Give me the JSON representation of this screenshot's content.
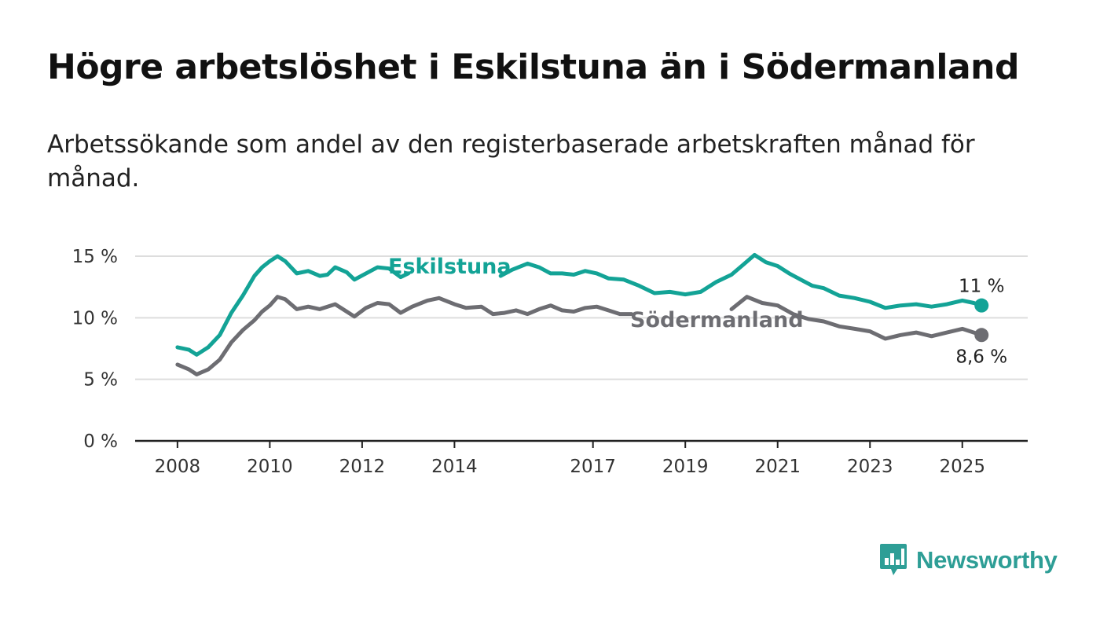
{
  "title": "Högre arbetslöshet i Eskilstuna än i Södermanland",
  "subtitle": "Arbetssökande som andel av den registerbaserade arbetskraften månad för månad.",
  "brand": {
    "name": "Newsworthy",
    "color": "#2e9e96",
    "icon": "bar-chart-speech-bubble-icon"
  },
  "colors": {
    "eskilstuna": "#13a396",
    "sodermanland": "#6d6d72",
    "grid": "#dddddd",
    "axis": "#222222"
  },
  "chart_data": {
    "type": "line",
    "ylim": [
      0,
      15
    ],
    "yticks": [
      0,
      5,
      10,
      15
    ],
    "ytick_labels": [
      "0 %",
      "5 %",
      "10 %",
      "15 %"
    ],
    "xlim": [
      "2007-02",
      "2026-06"
    ],
    "xticks": [
      "2008-01",
      "2010-01",
      "2012-01",
      "2014-01",
      "2017-01",
      "2019-01",
      "2021-01",
      "2023-01",
      "2025-01"
    ],
    "xtick_labels": [
      "2008",
      "2010",
      "2012",
      "2014",
      "2017",
      "2019",
      "2021",
      "2023",
      "2025"
    ],
    "grid": true,
    "series": [
      {
        "name": "Eskilstuna",
        "key": "eskilstuna",
        "end_label": "11 %",
        "points": [
          [
            "2008-01",
            7.6
          ],
          [
            "2008-04",
            7.4
          ],
          [
            "2008-06",
            7.0
          ],
          [
            "2008-09",
            7.6
          ],
          [
            "2008-12",
            8.6
          ],
          [
            "2009-03",
            10.4
          ],
          [
            "2009-06",
            11.8
          ],
          [
            "2009-09",
            13.4
          ],
          [
            "2009-11",
            14.1
          ],
          [
            "2010-01",
            14.6
          ],
          [
            "2010-03",
            15.0
          ],
          [
            "2010-05",
            14.6
          ],
          [
            "2010-08",
            13.6
          ],
          [
            "2010-11",
            13.8
          ],
          [
            "2011-02",
            13.4
          ],
          [
            "2011-04",
            13.5
          ],
          [
            "2011-06",
            14.1
          ],
          [
            "2011-09",
            13.7
          ],
          [
            "2011-11",
            13.1
          ],
          [
            "2012-02",
            13.6
          ],
          [
            "2012-05",
            14.1
          ],
          [
            "2012-08",
            14.0
          ],
          [
            "2012-11",
            13.3
          ],
          [
            "2013-01",
            13.6
          ],
          [
            "2015-01",
            13.4
          ],
          [
            "2015-04",
            13.9
          ],
          [
            "2015-08",
            14.4
          ],
          [
            "2015-11",
            14.1
          ],
          [
            "2016-02",
            13.6
          ],
          [
            "2016-05",
            13.6
          ],
          [
            "2016-08",
            13.5
          ],
          [
            "2016-11",
            13.8
          ],
          [
            "2017-02",
            13.6
          ],
          [
            "2017-05",
            13.2
          ],
          [
            "2017-09",
            13.1
          ],
          [
            "2018-01",
            12.6
          ],
          [
            "2018-05",
            12.0
          ],
          [
            "2018-09",
            12.1
          ],
          [
            "2019-01",
            11.9
          ],
          [
            "2019-05",
            12.1
          ],
          [
            "2019-09",
            12.9
          ],
          [
            "2020-01",
            13.5
          ],
          [
            "2020-04",
            14.3
          ],
          [
            "2020-07",
            15.1
          ],
          [
            "2020-10",
            14.5
          ],
          [
            "2021-01",
            14.2
          ],
          [
            "2021-04",
            13.6
          ],
          [
            "2021-07",
            13.1
          ],
          [
            "2021-10",
            12.6
          ],
          [
            "2022-01",
            12.4
          ],
          [
            "2022-05",
            11.8
          ],
          [
            "2022-09",
            11.6
          ],
          [
            "2023-01",
            11.3
          ],
          [
            "2023-05",
            10.8
          ],
          [
            "2023-09",
            11.0
          ],
          [
            "2024-01",
            11.1
          ],
          [
            "2024-05",
            10.9
          ],
          [
            "2024-09",
            11.1
          ],
          [
            "2025-01",
            11.4
          ],
          [
            "2025-04",
            11.2
          ],
          [
            "2025-06",
            11.0
          ]
        ]
      },
      {
        "name": "Södermanland",
        "key": "sodermanland",
        "end_label": "8,6 %",
        "points": [
          [
            "2008-01",
            6.2
          ],
          [
            "2008-04",
            5.8
          ],
          [
            "2008-06",
            5.4
          ],
          [
            "2008-09",
            5.8
          ],
          [
            "2008-12",
            6.6
          ],
          [
            "2009-03",
            8.0
          ],
          [
            "2009-06",
            9.0
          ],
          [
            "2009-09",
            9.8
          ],
          [
            "2009-11",
            10.5
          ],
          [
            "2010-01",
            11.0
          ],
          [
            "2010-03",
            11.7
          ],
          [
            "2010-05",
            11.5
          ],
          [
            "2010-08",
            10.7
          ],
          [
            "2010-11",
            10.9
          ],
          [
            "2011-02",
            10.7
          ],
          [
            "2011-04",
            10.9
          ],
          [
            "2011-06",
            11.1
          ],
          [
            "2011-09",
            10.5
          ],
          [
            "2011-11",
            10.1
          ],
          [
            "2012-02",
            10.8
          ],
          [
            "2012-05",
            11.2
          ],
          [
            "2012-08",
            11.1
          ],
          [
            "2012-11",
            10.4
          ],
          [
            "2013-02",
            10.9
          ],
          [
            "2013-06",
            11.4
          ],
          [
            "2013-09",
            11.6
          ],
          [
            "2014-01",
            11.1
          ],
          [
            "2014-04",
            10.8
          ],
          [
            "2014-08",
            10.9
          ],
          [
            "2014-11",
            10.3
          ],
          [
            "2015-02",
            10.4
          ],
          [
            "2015-05",
            10.6
          ],
          [
            "2015-08",
            10.3
          ],
          [
            "2015-11",
            10.7
          ],
          [
            "2016-02",
            11.0
          ],
          [
            "2016-05",
            10.6
          ],
          [
            "2016-08",
            10.5
          ],
          [
            "2016-11",
            10.8
          ],
          [
            "2017-02",
            10.9
          ],
          [
            "2017-05",
            10.6
          ],
          [
            "2017-08",
            10.3
          ],
          [
            "2017-11",
            10.3
          ],
          [
            "2020-01",
            10.7
          ],
          [
            "2020-05",
            11.7
          ],
          [
            "2020-09",
            11.2
          ],
          [
            "2021-01",
            11.0
          ],
          [
            "2021-05",
            10.3
          ],
          [
            "2021-09",
            9.9
          ],
          [
            "2022-01",
            9.7
          ],
          [
            "2022-05",
            9.3
          ],
          [
            "2022-09",
            9.1
          ],
          [
            "2023-01",
            8.9
          ],
          [
            "2023-05",
            8.3
          ],
          [
            "2023-09",
            8.6
          ],
          [
            "2024-01",
            8.8
          ],
          [
            "2024-05",
            8.5
          ],
          [
            "2024-09",
            8.8
          ],
          [
            "2025-01",
            9.1
          ],
          [
            "2025-04",
            8.8
          ],
          [
            "2025-06",
            8.6
          ]
        ]
      }
    ]
  }
}
